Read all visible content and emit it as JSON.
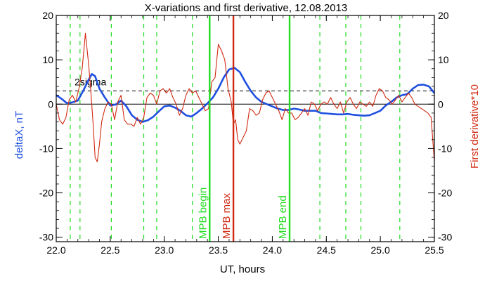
{
  "chart_data": {
    "type": "line",
    "title": "X-variations and first derivative, 12.08.2013",
    "xlabel": "UT, hours",
    "ylabel_left": "deltaX, nT",
    "ylabel_right": "First derivative*10",
    "xlim": [
      22.0,
      25.5
    ],
    "ylim": [
      -31,
      20
    ],
    "xticks": [
      "22.0",
      "22.5",
      "23.0",
      "23.5",
      "24.0",
      "24.5",
      "25.0",
      "25.5"
    ],
    "yticks": [
      "20",
      "10",
      "0",
      "-10",
      "-20",
      "-30"
    ],
    "colors": {
      "deltaX": "#1f4fe0",
      "derivative": "#d12a12",
      "mpb_edge": "#22dd22",
      "mpb_max": "#d12a12",
      "dashed": "#22dd22"
    },
    "threshold": {
      "label": "2sigma",
      "value": 3.0
    },
    "zero_line": 0,
    "green_dashed_x": [
      22.13,
      22.22,
      22.51,
      22.81,
      22.93,
      23.26,
      24.44,
      24.68,
      24.82,
      25.18
    ],
    "markers": [
      {
        "label": "MPB begin",
        "x": 23.42
      },
      {
        "label": "MPB max",
        "x": 23.64
      },
      {
        "label": "MPB end",
        "x": 24.16
      }
    ],
    "series": [
      {
        "key": "deltaX",
        "x": [
          22.0,
          22.05,
          22.1,
          22.15,
          22.2,
          22.25,
          22.3,
          22.33,
          22.36,
          22.4,
          22.45,
          22.5,
          22.55,
          22.6,
          22.65,
          22.7,
          22.75,
          22.8,
          22.85,
          22.9,
          22.95,
          23.0,
          23.05,
          23.1,
          23.15,
          23.2,
          23.25,
          23.3,
          23.35,
          23.4,
          23.45,
          23.5,
          23.55,
          23.6,
          23.65,
          23.7,
          23.75,
          23.8,
          23.85,
          23.9,
          23.95,
          24.0,
          24.05,
          24.1,
          24.15,
          24.2,
          24.25,
          24.3,
          24.35,
          24.4,
          24.45,
          24.5,
          24.55,
          24.6,
          24.65,
          24.7,
          24.75,
          24.8,
          24.85,
          24.9,
          24.95,
          25.0,
          25.05,
          25.1,
          25.15,
          25.2,
          25.25,
          25.3,
          25.35,
          25.4,
          25.45,
          25.5
        ],
        "y": [
          2.0,
          1.2,
          0.2,
          0.4,
          0.8,
          3.0,
          5.5,
          6.8,
          6.3,
          3.5,
          1.5,
          -0.3,
          -0.1,
          0.8,
          -0.5,
          -2.5,
          -3.5,
          -4.0,
          -3.6,
          -2.8,
          -1.6,
          -0.5,
          -0.3,
          -0.8,
          -1.5,
          -2.5,
          -2.8,
          -2.0,
          -1.0,
          0.2,
          1.5,
          3.5,
          6.0,
          7.8,
          8.2,
          7.2,
          5.0,
          3.0,
          1.5,
          0.5,
          0.0,
          -0.5,
          -1.0,
          -1.3,
          -1.3,
          -1.0,
          -1.2,
          -1.5,
          -1.5,
          -1.5,
          -2.0,
          -2.1,
          -2.2,
          -2.3,
          -2.3,
          -2.2,
          -2.4,
          -2.5,
          -2.6,
          -2.5,
          -2.0,
          -1.5,
          -0.3,
          0.5,
          1.5,
          2.0,
          2.3,
          3.5,
          4.3,
          4.4,
          4.0,
          2.5
        ]
      },
      {
        "key": "derivative",
        "x": [
          22.0,
          22.03,
          22.06,
          22.09,
          22.12,
          22.15,
          22.18,
          22.21,
          22.24,
          22.27,
          22.3,
          22.32,
          22.34,
          22.36,
          22.38,
          22.4,
          22.42,
          22.45,
          22.48,
          22.51,
          22.54,
          22.57,
          22.6,
          22.63,
          22.66,
          22.69,
          22.72,
          22.75,
          22.78,
          22.81,
          22.84,
          22.87,
          22.9,
          22.93,
          22.96,
          22.99,
          23.02,
          23.05,
          23.08,
          23.11,
          23.14,
          23.17,
          23.2,
          23.23,
          23.26,
          23.29,
          23.32,
          23.35,
          23.38,
          23.41,
          23.44,
          23.47,
          23.5,
          23.53,
          23.56,
          23.59,
          23.62,
          23.64,
          23.66,
          23.68,
          23.7,
          23.73,
          23.76,
          23.79,
          23.82,
          23.85,
          23.88,
          23.91,
          23.94,
          23.97,
          24.0,
          24.03,
          24.06,
          24.09,
          24.12,
          24.15,
          24.18,
          24.21,
          24.24,
          24.27,
          24.3,
          24.33,
          24.36,
          24.39,
          24.42,
          24.45,
          24.48,
          24.51,
          24.54,
          24.57,
          24.6,
          24.63,
          24.66,
          24.69,
          24.72,
          24.75,
          24.78,
          24.81,
          24.84,
          24.87,
          24.9,
          24.93,
          24.96,
          24.99,
          25.02,
          25.05,
          25.08,
          25.11,
          25.14,
          25.17,
          25.2,
          25.23,
          25.26,
          25.29,
          25.32,
          25.35,
          25.38,
          25.41,
          25.44,
          25.47,
          25.5
        ],
        "y": [
          0.0,
          -3.5,
          -4.5,
          -3.0,
          1.0,
          2.0,
          0.5,
          3.5,
          8.0,
          16.0,
          9.0,
          3.0,
          -4.0,
          -12.0,
          -13.0,
          -9.0,
          -4.0,
          -1.0,
          0.5,
          0.0,
          -3.5,
          0.5,
          2.0,
          -3.5,
          -4.5,
          -4.5,
          -5.0,
          -3.0,
          -4.5,
          -3.0,
          1.5,
          2.5,
          2.0,
          0.0,
          3.0,
          3.5,
          2.5,
          3.5,
          1.5,
          0.0,
          -2.5,
          -1.0,
          2.0,
          3.5,
          2.5,
          3.0,
          1.5,
          0.0,
          -1.5,
          -1.0,
          5.0,
          6.0,
          13.5,
          12.0,
          10.0,
          3.5,
          0.5,
          -4.5,
          -3.5,
          -8.0,
          -9.0,
          -7.5,
          -6.0,
          -1.0,
          -1.5,
          -2.5,
          -2.0,
          1.0,
          2.5,
          3.0,
          1.5,
          0.0,
          -1.5,
          -3.5,
          -1.0,
          -2.0,
          -2.0,
          -3.5,
          -3.0,
          -2.0,
          -1.0,
          -2.5,
          0.5,
          0.0,
          -1.5,
          0.0,
          0.5,
          0.0,
          1.5,
          0.0,
          -1.0,
          0.5,
          -2.0,
          0.5,
          1.5,
          0.0,
          -1.0,
          0.5,
          0.0,
          -0.5,
          0.5,
          -0.5,
          2.0,
          3.5,
          3.0,
          1.5,
          1.0,
          0.0,
          1.0,
          2.0,
          0.5,
          1.5,
          2.5,
          1.5,
          0.0,
          -0.5,
          -1.0,
          -1.5,
          -2.0,
          -3.0,
          -13.0
        ]
      }
    ]
  }
}
